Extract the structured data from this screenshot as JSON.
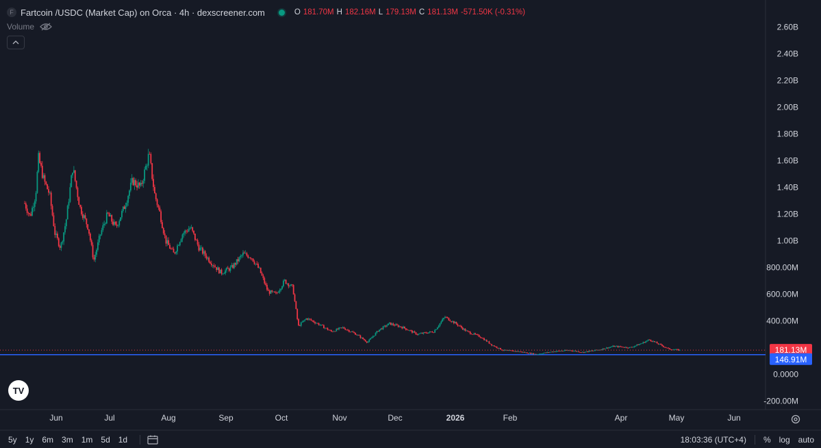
{
  "header": {
    "icon_letter": "F",
    "title": "Fartcoin /USDC (Market Cap) on Orca · 4h · dexscreener.com",
    "ohlc": [
      {
        "k": "O",
        "v": "181.70M"
      },
      {
        "k": "H",
        "v": "182.16M"
      },
      {
        "k": "L",
        "v": "179.13M"
      },
      {
        "k": "C",
        "v": "181.13M"
      },
      {
        "k": "",
        "v": "-571.50K (-0.31%)"
      }
    ]
  },
  "volume_label": "Volume",
  "tv_logo_text": "TV",
  "colors": {
    "up": "#089981",
    "down": "#f23645",
    "line": "#2962ff",
    "background": "#161a25"
  },
  "chart_data": {
    "type": "candlestick",
    "title": "Fartcoin /USDC (Market Cap) on Orca · 4h · dexscreener.com",
    "ylim": [
      -290,
      2710
    ],
    "y_ticks": [
      {
        "value": 2600,
        "label": "2.60B"
      },
      {
        "value": 2400,
        "label": "2.40B"
      },
      {
        "value": 2200,
        "label": "2.20B"
      },
      {
        "value": 2000,
        "label": "2.00B"
      },
      {
        "value": 1800,
        "label": "1.80B"
      },
      {
        "value": 1600,
        "label": "1.60B"
      },
      {
        "value": 1400,
        "label": "1.40B"
      },
      {
        "value": 1200,
        "label": "1.20B"
      },
      {
        "value": 1000,
        "label": "1.00B"
      },
      {
        "value": 800,
        "label": "800.00M"
      },
      {
        "value": 600,
        "label": "600.00M"
      },
      {
        "value": 400,
        "label": "400.00M"
      },
      {
        "value": 0,
        "label": "0.0000"
      },
      {
        "value": -200,
        "label": "-200.00M"
      }
    ],
    "x_ticks": [
      {
        "t": 0.0,
        "label": "Jun",
        "bold": false
      },
      {
        "t": 1.0,
        "label": "Jul",
        "bold": false
      },
      {
        "t": 2.0,
        "label": "Aug",
        "bold": false
      },
      {
        "t": 3.0,
        "label": "Sep",
        "bold": false
      },
      {
        "t": 4.0,
        "label": "Oct",
        "bold": false
      },
      {
        "t": 5.0,
        "label": "Nov",
        "bold": false
      },
      {
        "t": 6.0,
        "label": "Dec",
        "bold": false
      },
      {
        "t": 7.0,
        "label": "2026",
        "bold": true
      },
      {
        "t": 8.0,
        "label": "Feb",
        "bold": false
      },
      {
        "t": 9.0,
        "label": "Apr",
        "bold": false
      },
      {
        "t": 10.0,
        "label": "May",
        "bold": false
      },
      {
        "t": 11.0,
        "label": "Jun",
        "bold": false
      }
    ],
    "x_range": [
      -0.55,
      12.38
    ],
    "x_tick_positions_hint": [
      82,
      160,
      246,
      330,
      411,
      496,
      577,
      665,
      745,
      907,
      988,
      1072
    ],
    "close_series": [
      {
        "t": -0.55,
        "v": 1280
      },
      {
        "t": -0.45,
        "v": 1180
      },
      {
        "t": -0.35,
        "v": 1350
      },
      {
        "t": -0.3,
        "v": 1620
      },
      {
        "t": -0.2,
        "v": 1450
      },
      {
        "t": -0.1,
        "v": 1350
      },
      {
        "t": 0.0,
        "v": 1050
      },
      {
        "t": 0.1,
        "v": 950
      },
      {
        "t": 0.2,
        "v": 1150
      },
      {
        "t": 0.32,
        "v": 1550
      },
      {
        "t": 0.45,
        "v": 1250
      },
      {
        "t": 0.6,
        "v": 1100
      },
      {
        "t": 0.7,
        "v": 850
      },
      {
        "t": 0.82,
        "v": 1050
      },
      {
        "t": 0.95,
        "v": 1200
      },
      {
        "t": 1.1,
        "v": 1100
      },
      {
        "t": 1.25,
        "v": 1250
      },
      {
        "t": 1.4,
        "v": 1450
      },
      {
        "t": 1.55,
        "v": 1400
      },
      {
        "t": 1.7,
        "v": 1650
      },
      {
        "t": 1.8,
        "v": 1350
      },
      {
        "t": 1.9,
        "v": 1200
      },
      {
        "t": 2.0,
        "v": 1000
      },
      {
        "t": 2.15,
        "v": 900
      },
      {
        "t": 2.3,
        "v": 1050
      },
      {
        "t": 2.45,
        "v": 1100
      },
      {
        "t": 2.6,
        "v": 950
      },
      {
        "t": 2.8,
        "v": 850
      },
      {
        "t": 3.0,
        "v": 760
      },
      {
        "t": 3.2,
        "v": 800
      },
      {
        "t": 3.4,
        "v": 900
      },
      {
        "t": 3.55,
        "v": 880
      },
      {
        "t": 3.7,
        "v": 780
      },
      {
        "t": 3.85,
        "v": 620
      },
      {
        "t": 4.0,
        "v": 600
      },
      {
        "t": 4.15,
        "v": 700
      },
      {
        "t": 4.3,
        "v": 650
      },
      {
        "t": 4.4,
        "v": 360
      },
      {
        "t": 4.55,
        "v": 420
      },
      {
        "t": 4.75,
        "v": 380
      },
      {
        "t": 5.0,
        "v": 320
      },
      {
        "t": 5.2,
        "v": 350
      },
      {
        "t": 5.45,
        "v": 300
      },
      {
        "t": 5.65,
        "v": 240
      },
      {
        "t": 5.85,
        "v": 330
      },
      {
        "t": 6.05,
        "v": 380
      },
      {
        "t": 6.3,
        "v": 350
      },
      {
        "t": 6.55,
        "v": 300
      },
      {
        "t": 6.85,
        "v": 320
      },
      {
        "t": 7.05,
        "v": 430
      },
      {
        "t": 7.25,
        "v": 380
      },
      {
        "t": 7.45,
        "v": 320
      },
      {
        "t": 7.7,
        "v": 280
      },
      {
        "t": 7.9,
        "v": 220
      },
      {
        "t": 8.1,
        "v": 180
      },
      {
        "t": 8.4,
        "v": 170
      },
      {
        "t": 8.7,
        "v": 150
      },
      {
        "t": 9.0,
        "v": 170
      },
      {
        "t": 9.3,
        "v": 180
      },
      {
        "t": 9.55,
        "v": 165
      },
      {
        "t": 9.85,
        "v": 185
      },
      {
        "t": 10.1,
        "v": 210
      },
      {
        "t": 10.4,
        "v": 200
      },
      {
        "t": 10.6,
        "v": 230
      },
      {
        "t": 10.75,
        "v": 260
      },
      {
        "t": 10.9,
        "v": 230
      },
      {
        "t": 11.1,
        "v": 190
      },
      {
        "t": 11.3,
        "v": 181
      }
    ],
    "last_price": {
      "value": 181.13,
      "label": "181.13M"
    },
    "horizontal_line": {
      "value": 146.91,
      "label": "146.91M"
    }
  },
  "footer": {
    "ranges": [
      "5y",
      "1y",
      "6m",
      "3m",
      "1m",
      "5d",
      "1d"
    ],
    "time": "18:03:36 (UTC+4)",
    "percent": "%",
    "log": "log",
    "auto": "auto"
  }
}
